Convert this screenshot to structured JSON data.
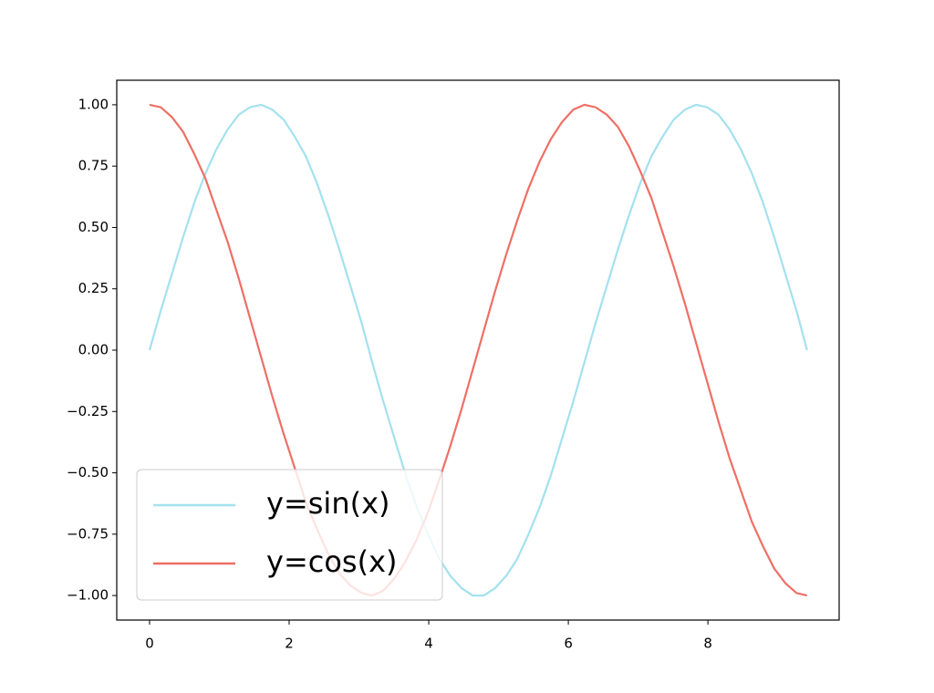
{
  "chart_data": {
    "type": "line",
    "x": [
      0,
      0.16,
      0.32,
      0.48,
      0.64,
      0.8,
      0.96,
      1.12,
      1.28,
      1.44,
      1.6,
      1.76,
      1.92,
      2.08,
      2.24,
      2.4,
      2.56,
      2.72,
      2.88,
      3.04,
      3.19,
      3.35,
      3.51,
      3.67,
      3.83,
      3.99,
      4.15,
      4.31,
      4.47,
      4.63,
      4.79,
      4.95,
      5.11,
      5.27,
      5.43,
      5.59,
      5.75,
      5.91,
      6.07,
      6.23,
      6.39,
      6.55,
      6.71,
      6.87,
      7.03,
      7.19,
      7.35,
      7.51,
      7.67,
      7.83,
      7.99,
      8.15,
      8.31,
      8.47,
      8.63,
      8.79,
      8.95,
      9.11,
      9.27,
      9.42
    ],
    "series": [
      {
        "name": "y=sin(x)",
        "color": "#a3e1ef",
        "values": [
          0.0,
          0.16,
          0.31,
          0.46,
          0.6,
          0.72,
          0.82,
          0.9,
          0.96,
          0.99,
          1.0,
          0.98,
          0.94,
          0.87,
          0.79,
          0.68,
          0.55,
          0.41,
          0.26,
          0.11,
          -0.05,
          -0.21,
          -0.36,
          -0.51,
          -0.64,
          -0.75,
          -0.85,
          -0.92,
          -0.97,
          -1.0,
          -1.0,
          -0.97,
          -0.92,
          -0.85,
          -0.75,
          -0.64,
          -0.51,
          -0.36,
          -0.21,
          -0.05,
          0.11,
          0.26,
          0.41,
          0.55,
          0.68,
          0.79,
          0.87,
          0.94,
          0.98,
          1.0,
          0.99,
          0.96,
          0.9,
          0.82,
          0.72,
          0.6,
          0.46,
          0.31,
          0.16,
          0.0
        ]
      },
      {
        "name": "y=cos(x)",
        "color": "#ee6f65",
        "values": [
          1.0,
          0.99,
          0.95,
          0.89,
          0.8,
          0.7,
          0.57,
          0.44,
          0.29,
          0.13,
          -0.03,
          -0.19,
          -0.34,
          -0.48,
          -0.62,
          -0.73,
          -0.83,
          -0.91,
          -0.96,
          -0.99,
          -1.0,
          -0.98,
          -0.93,
          -0.86,
          -0.77,
          -0.66,
          -0.53,
          -0.39,
          -0.24,
          -0.08,
          0.08,
          0.24,
          0.39,
          0.53,
          0.66,
          0.77,
          0.86,
          0.93,
          0.98,
          1.0,
          0.99,
          0.96,
          0.91,
          0.83,
          0.73,
          0.62,
          0.48,
          0.34,
          0.19,
          0.03,
          -0.13,
          -0.29,
          -0.44,
          -0.57,
          -0.7,
          -0.8,
          -0.89,
          -0.95,
          -0.99,
          -1.0
        ]
      }
    ],
    "xlim": [
      -0.47,
      9.88
    ],
    "ylim": [
      -1.1,
      1.1
    ],
    "xticks": [
      0,
      2,
      4,
      6,
      8
    ],
    "yticks": [
      {
        "value": 1,
        "label": "1.00"
      },
      {
        "value": 0.75,
        "label": "0.75"
      },
      {
        "value": 0.5,
        "label": "0.50"
      },
      {
        "value": 0.25,
        "label": "0.25"
      },
      {
        "value": 0,
        "label": "0.00"
      },
      {
        "value": -0.25,
        "label": "−0.25"
      },
      {
        "value": -0.5,
        "label": "−0.50"
      },
      {
        "value": -0.75,
        "label": "−0.75"
      },
      {
        "value": -1,
        "label": "−1.00"
      }
    ],
    "legend": "lower left"
  }
}
